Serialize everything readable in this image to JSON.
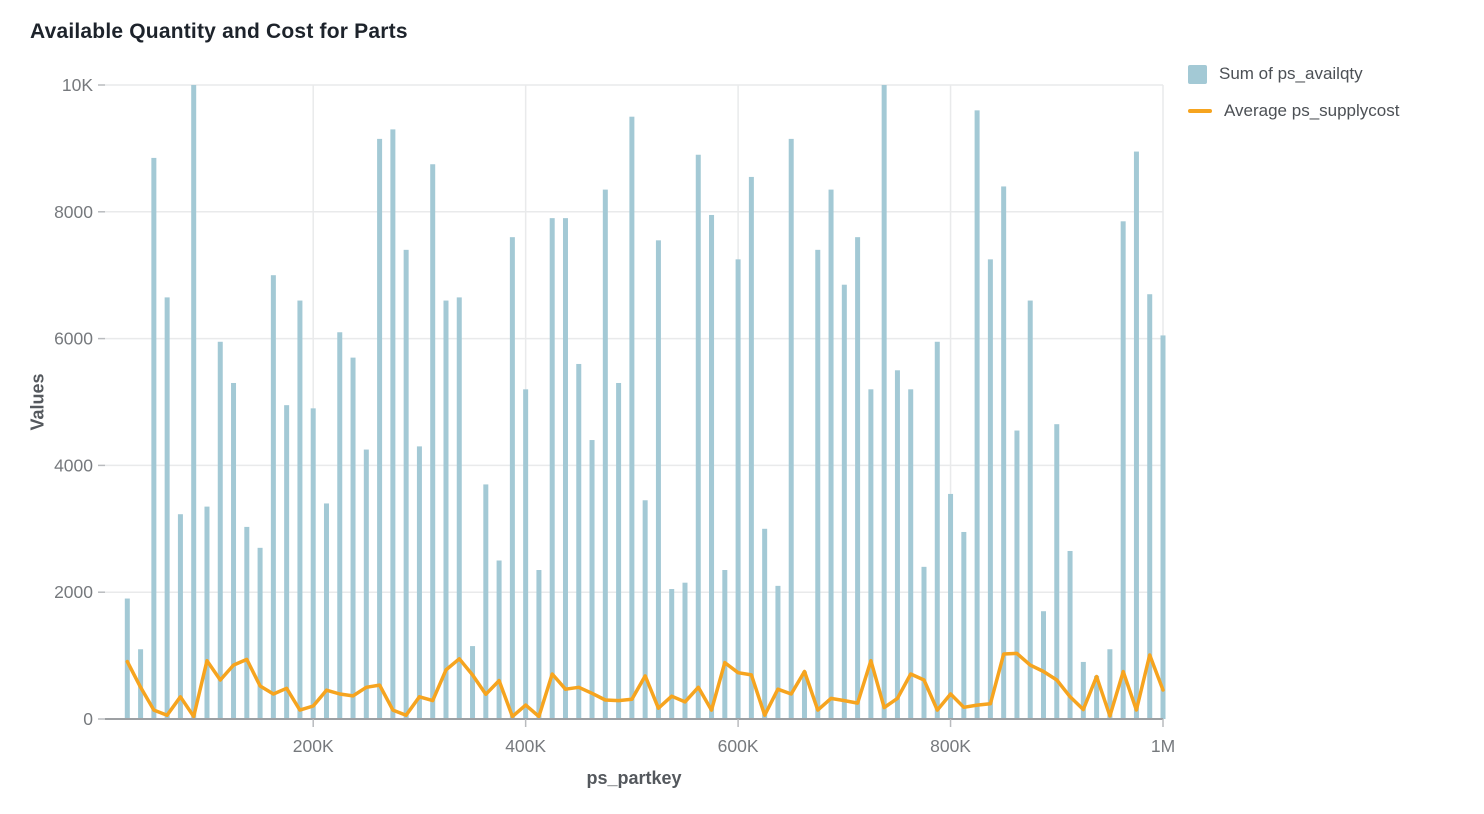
{
  "title": "Available Quantity and Cost for Parts",
  "colors": {
    "background": "#ffffff",
    "bar": "#a3c9d5",
    "line": "#f6a41f",
    "title_text": "#1d232b",
    "legend_text": "#4c5055",
    "tick_text": "#76797d",
    "axis_title_text": "#54585d",
    "gridline": "#e9eaeb",
    "axis_line": "#9da0a3",
    "tick_mark": "#b9bbbe"
  },
  "legend": {
    "items": [
      {
        "label": "Sum of ps_availqty",
        "swatch": "square",
        "color": "#a3c9d5"
      },
      {
        "label": "Average ps_supplycost",
        "swatch": "line",
        "color": "#f6a41f"
      }
    ]
  },
  "chart_data": {
    "type": "combo",
    "title": "Available Quantity and Cost for Parts",
    "xlabel": "ps_partkey",
    "ylabel": "Values",
    "grid": true,
    "legend_position": "top-right",
    "x_range": [
      4000,
      1000000
    ],
    "y_range": [
      0,
      10000
    ],
    "x_ticks": [
      {
        "value": 200000,
        "label": "200K"
      },
      {
        "value": 400000,
        "label": "400K"
      },
      {
        "value": 600000,
        "label": "600K"
      },
      {
        "value": 800000,
        "label": "800K"
      },
      {
        "value": 1000000,
        "label": "1M"
      }
    ],
    "y_ticks": [
      {
        "value": 0,
        "label": "0"
      },
      {
        "value": 2000,
        "label": "2000"
      },
      {
        "value": 4000,
        "label": "4000"
      },
      {
        "value": 6000,
        "label": "6000"
      },
      {
        "value": 8000,
        "label": "8000"
      },
      {
        "value": 10000,
        "label": "10K"
      }
    ],
    "x": [
      25000,
      37500,
      50000,
      62500,
      75000,
      87500,
      100000,
      112500,
      125000,
      137500,
      150000,
      162500,
      175000,
      187500,
      200000,
      212500,
      225000,
      237500,
      250000,
      262500,
      275000,
      287500,
      300000,
      312500,
      325000,
      337500,
      350000,
      362500,
      375000,
      387500,
      400000,
      412500,
      425000,
      437500,
      450000,
      462500,
      475000,
      487500,
      500000,
      512500,
      525000,
      537500,
      550000,
      562500,
      575000,
      587500,
      600000,
      612500,
      625000,
      637500,
      650000,
      662500,
      675000,
      687500,
      700000,
      712500,
      725000,
      737500,
      750000,
      762500,
      775000,
      787500,
      800000,
      812500,
      825000,
      837500,
      850000,
      862500,
      875000,
      887500,
      900000,
      912500,
      925000,
      937500,
      950000,
      962500,
      975000,
      987500,
      1000000
    ],
    "series": [
      {
        "name": "Sum of ps_availqty",
        "type": "bar",
        "color": "#a3c9d5",
        "values": [
          1900,
          1100,
          8850,
          6650,
          3230,
          10000,
          3350,
          5950,
          5300,
          3030,
          2700,
          7000,
          4950,
          6600,
          4900,
          3400,
          6100,
          5700,
          4250,
          9150,
          9300,
          7400,
          4300,
          8750,
          6600,
          6650,
          1150,
          3700,
          2500,
          7600,
          5200,
          2350,
          7900,
          7900,
          5600,
          4400,
          8350,
          5300,
          9500,
          3450,
          7550,
          2050,
          2150,
          8900,
          7950,
          2350,
          7250,
          8550,
          3000,
          2100,
          9150,
          750,
          7400,
          8350,
          6850,
          7600,
          5200,
          10000,
          5500,
          5200,
          2400,
          5950,
          3550,
          2950,
          9600,
          7250,
          8400,
          4550,
          6600,
          1700,
          4650,
          2650,
          900,
          680,
          1100,
          7850,
          8950,
          6700,
          6050
        ]
      },
      {
        "name": "Average ps_supplycost",
        "type": "line",
        "color": "#f6a41f",
        "values": [
          905,
          500,
          140,
          60,
          350,
          40,
          920,
          615,
          850,
          940,
          520,
          395,
          485,
          140,
          205,
          455,
          395,
          365,
          500,
          535,
          140,
          60,
          350,
          290,
          775,
          950,
          695,
          390,
          605,
          40,
          220,
          40,
          710,
          470,
          500,
          405,
          300,
          290,
          310,
          680,
          170,
          360,
          270,
          500,
          140,
          890,
          730,
          695,
          60,
          470,
          395,
          750,
          140,
          325,
          290,
          250,
          920,
          180,
          325,
          710,
          615,
          140,
          395,
          185,
          220,
          240,
          1025,
          1035,
          850,
          750,
          615,
          350,
          150,
          670,
          47,
          747,
          142,
          1010,
          458
        ]
      }
    ]
  }
}
